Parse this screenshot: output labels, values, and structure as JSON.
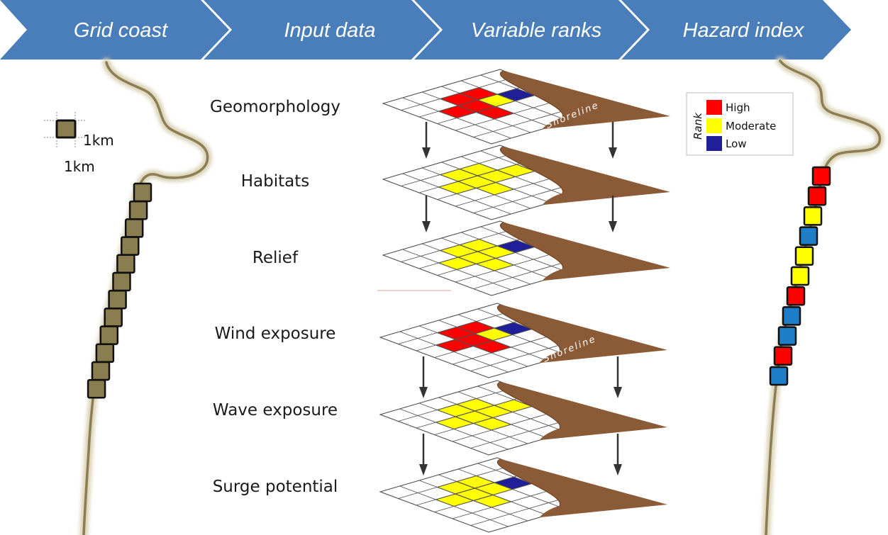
{
  "steps": [
    {
      "label": "Grid coast"
    },
    {
      "label": "Input data"
    },
    {
      "label": "Variable ranks"
    },
    {
      "label": "Hazard index"
    }
  ],
  "colors": {
    "banner": "#4a7ebb",
    "high": "#ff0000",
    "moderate": "#ffff00",
    "low": "#1f1f99",
    "index_low": "#1e7ec8",
    "coast_cell": "#8a7d50",
    "coastline": "#8c7e52",
    "shore": "#8b5a36"
  },
  "grid_coast": {
    "cell_width": "1km",
    "cell_height": "1km",
    "cell_count": 12
  },
  "layers": [
    {
      "label": "Geomorphology",
      "shoreline_label": "Shoreline",
      "cells": [
        [
          "high",
          1,
          2
        ],
        [
          "high",
          1,
          3
        ],
        [
          "high",
          2,
          1
        ],
        [
          "high",
          2,
          2
        ],
        [
          "moderate",
          2,
          3
        ],
        [
          "low",
          2,
          4
        ],
        [
          "high",
          3,
          2
        ]
      ]
    },
    {
      "label": "Habitats",
      "shoreline_label": "",
      "cells": [
        [
          "moderate",
          1,
          2
        ],
        [
          "moderate",
          1,
          3
        ],
        [
          "moderate",
          2,
          1
        ],
        [
          "moderate",
          2,
          2
        ],
        [
          "moderate",
          2,
          3
        ],
        [
          "moderate",
          2,
          4
        ],
        [
          "moderate",
          3,
          2
        ]
      ]
    },
    {
      "label": "Relief",
      "shoreline_label": "",
      "cells": [
        [
          "moderate",
          1,
          2
        ],
        [
          "moderate",
          1,
          3
        ],
        [
          "moderate",
          2,
          1
        ],
        [
          "moderate",
          2,
          2
        ],
        [
          "moderate",
          2,
          3
        ],
        [
          "low",
          2,
          4
        ],
        [
          "moderate",
          3,
          2
        ]
      ]
    },
    {
      "label": "Wind exposure",
      "shoreline_label": "Shoreline",
      "cells": [
        [
          "high",
          1,
          2
        ],
        [
          "high",
          1,
          3
        ],
        [
          "high",
          2,
          1
        ],
        [
          "high",
          2,
          2
        ],
        [
          "moderate",
          2,
          3
        ],
        [
          "low",
          2,
          4
        ],
        [
          "high",
          3,
          2
        ]
      ]
    },
    {
      "label": "Wave exposure",
      "shoreline_label": "",
      "cells": [
        [
          "moderate",
          1,
          2
        ],
        [
          "moderate",
          1,
          3
        ],
        [
          "moderate",
          2,
          1
        ],
        [
          "moderate",
          2,
          2
        ],
        [
          "moderate",
          2,
          3
        ],
        [
          "moderate",
          2,
          4
        ],
        [
          "moderate",
          3,
          2
        ]
      ]
    },
    {
      "label": "Surge potential",
      "shoreline_label": "",
      "cells": [
        [
          "moderate",
          1,
          2
        ],
        [
          "moderate",
          1,
          3
        ],
        [
          "moderate",
          2,
          1
        ],
        [
          "moderate",
          2,
          2
        ],
        [
          "moderate",
          2,
          3
        ],
        [
          "low",
          2,
          4
        ],
        [
          "moderate",
          3,
          2
        ]
      ]
    }
  ],
  "legend": {
    "title": "Rank",
    "items": [
      {
        "label": "High",
        "color": "#ff0000"
      },
      {
        "label": "Moderate",
        "color": "#ffff00"
      },
      {
        "label": "Low",
        "color": "#1f1f99"
      }
    ]
  },
  "hazard_index": [
    "high",
    "high",
    "moderate",
    "low",
    "moderate",
    "moderate",
    "high",
    "low",
    "low",
    "high",
    "low"
  ]
}
